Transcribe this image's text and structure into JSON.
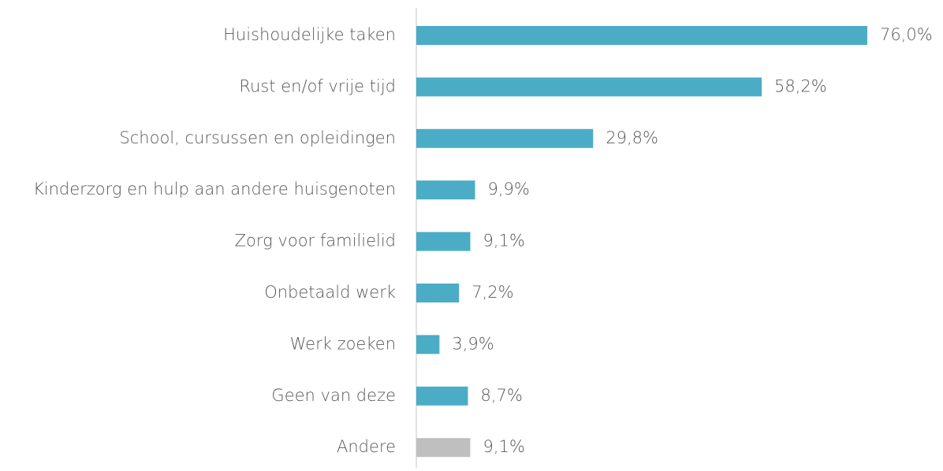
{
  "chart_data": {
    "type": "bar",
    "orientation": "horizontal",
    "categories": [
      "Huishoudelijke taken",
      "Rust en/of vrije tijd",
      "School, cursussen en opleidingen",
      "Kinderzorg en hulp aan andere huisgenoten",
      "Zorg voor familielid",
      "Onbetaald werk",
      "Werk zoeken",
      "Geen van deze",
      "Andere"
    ],
    "values": [
      76.0,
      58.2,
      29.8,
      9.9,
      9.1,
      7.2,
      3.9,
      8.7,
      9.1
    ],
    "value_labels": [
      "76,0%",
      "58,2%",
      "29,8%",
      "9,9%",
      "9,1%",
      "7,2%",
      "3,9%",
      "8,7%",
      "9,1%"
    ],
    "colors": [
      "#4bacc6",
      "#4bacc6",
      "#4bacc6",
      "#4bacc6",
      "#4bacc6",
      "#4bacc6",
      "#4bacc6",
      "#4bacc6",
      "#bfbfbf"
    ]
  }
}
